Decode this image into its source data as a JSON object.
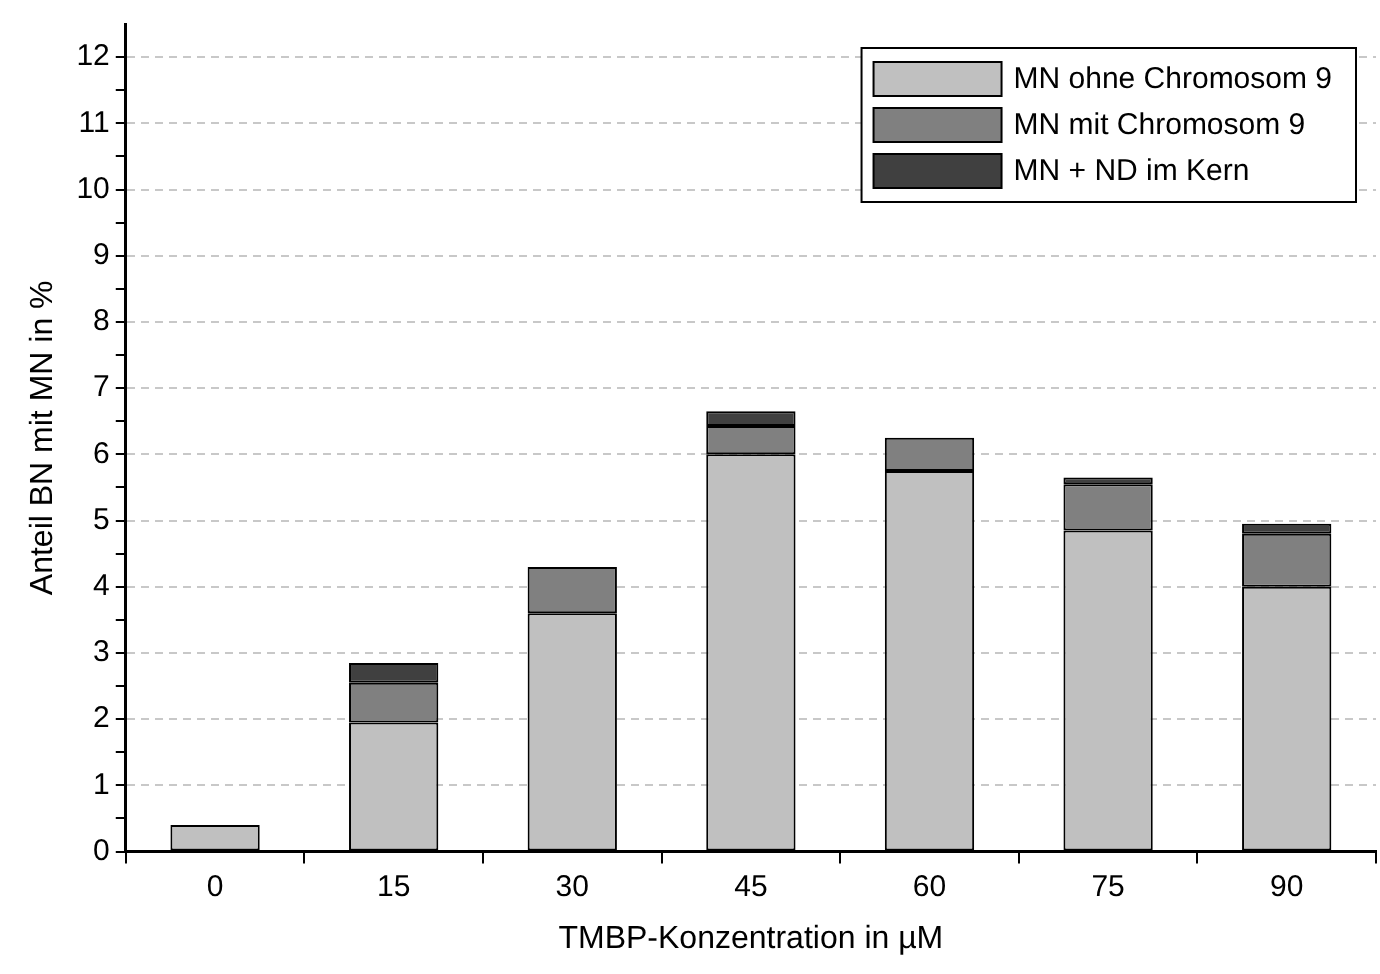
{
  "chart_data": {
    "type": "bar",
    "stacked": true,
    "xlabel": "TMBP-Konzentration in µM",
    "ylabel": "Anteil BN mit MN in %",
    "categories": [
      "0",
      "15",
      "30",
      "45",
      "60",
      "75",
      "90"
    ],
    "series": [
      {
        "name": "MN ohne Chromosom 9",
        "color": "#c0c0c0",
        "values": [
          0.4,
          1.95,
          3.6,
          6.0,
          5.75,
          4.85,
          4.0
        ]
      },
      {
        "name": "MN mit Chromosom 9",
        "color": "#808080",
        "values": [
          0,
          0.6,
          0.7,
          0.43,
          0.5,
          0.7,
          0.8
        ]
      },
      {
        "name": "MN + ND im Kern",
        "color": "#404040",
        "values": [
          0,
          0.3,
          0,
          0.22,
          0,
          0.1,
          0.15
        ]
      }
    ],
    "ylim": [
      0,
      12.5
    ],
    "yticks": [
      0,
      {
        "value": 0.5,
        "label": null
      },
      1,
      {
        "value": 1.5,
        "label": null
      },
      2,
      {
        "value": 2.5,
        "label": null
      },
      3,
      {
        "value": 3.5,
        "label": null
      },
      4,
      {
        "value": 4.5,
        "label": null
      },
      5,
      {
        "value": 5.5,
        "label": null
      },
      6,
      {
        "value": 6.5,
        "label": null
      },
      7,
      {
        "value": 7.5,
        "label": null
      },
      8,
      {
        "value": 8.5,
        "label": null
      },
      9,
      {
        "value": 9.5,
        "label": null
      },
      10,
      {
        "value": 10.5,
        "label": null
      },
      11,
      {
        "value": 11.5,
        "label": null
      },
      12
    ],
    "grid": "y",
    "legend": "top right"
  }
}
